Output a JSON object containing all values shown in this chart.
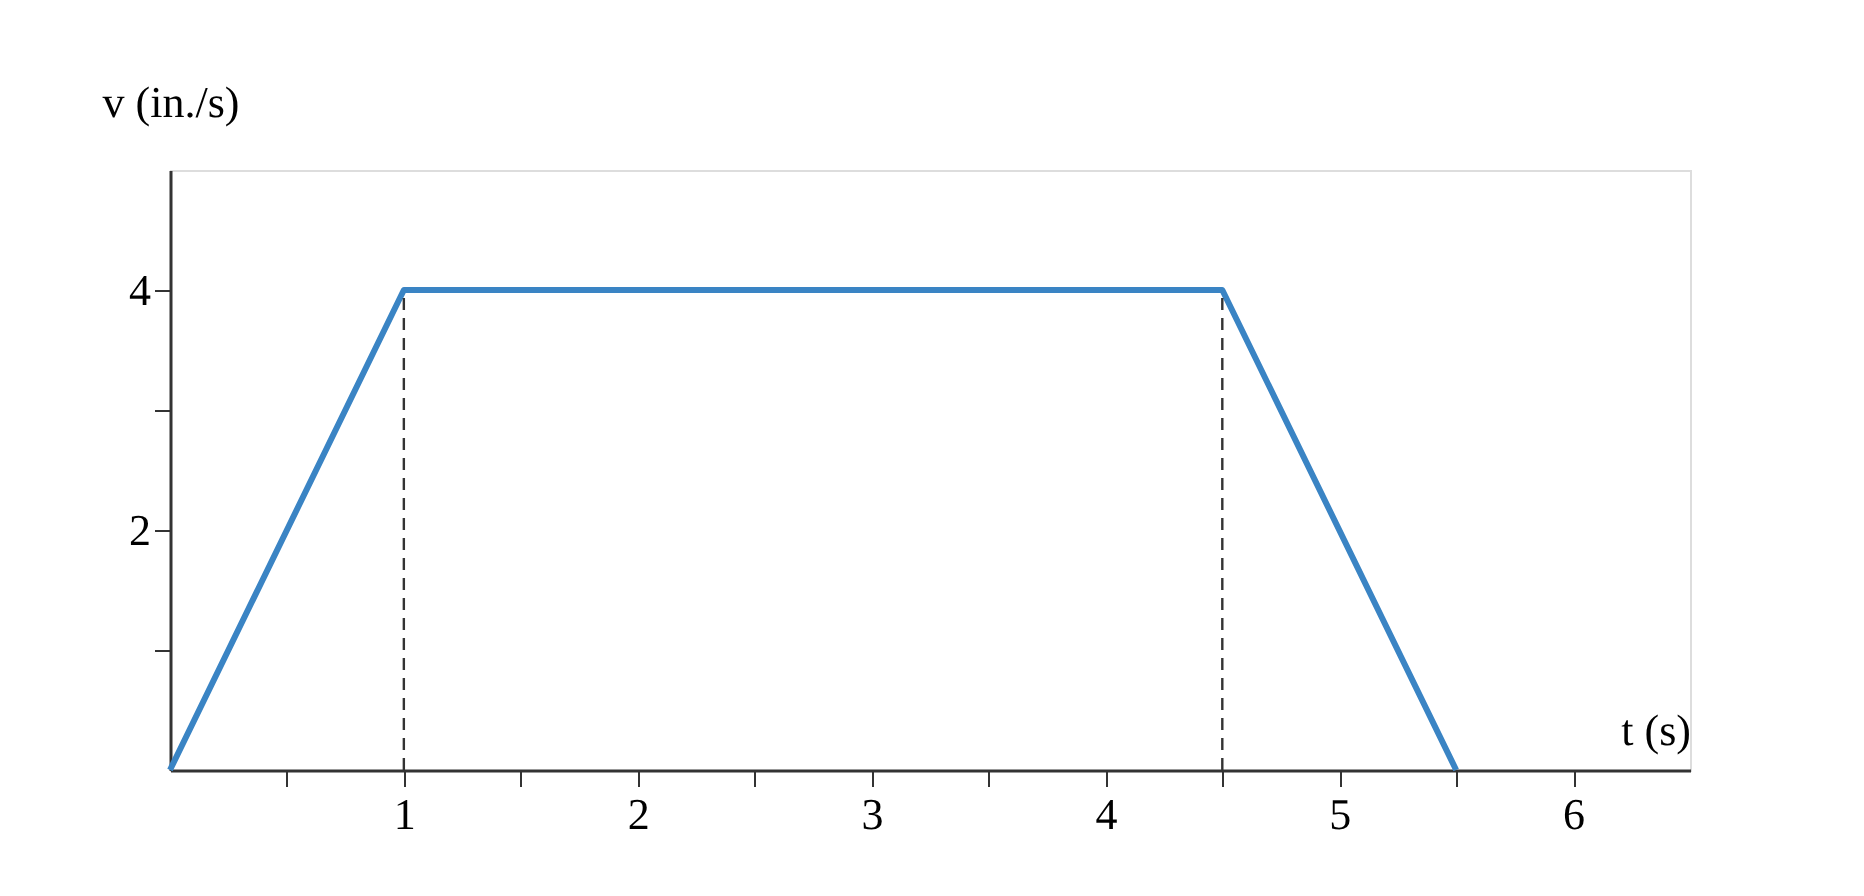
{
  "chart_data": {
    "type": "line",
    "xlabel": "t (s)",
    "ylabel": "v (in./s)",
    "series": [
      {
        "color": "#3a84c4",
        "x": [
          0,
          1,
          4.5,
          5.5
        ],
        "values": [
          0,
          4,
          4,
          0
        ]
      }
    ],
    "xlim": [
      0,
      6.5
    ],
    "ylim": [
      0,
      5
    ],
    "xticks": [
      {
        "value": 0.5,
        "label": null
      },
      1,
      {
        "value": 1.5,
        "label": null
      },
      2,
      {
        "value": 2.5,
        "label": null
      },
      3,
      {
        "value": 3.5,
        "label": null
      },
      4,
      {
        "value": 4.5,
        "label": null
      },
      5,
      {
        "value": 5.5,
        "label": null
      },
      6
    ],
    "yticks": [
      {
        "value": 1,
        "label": null
      },
      2,
      {
        "value": 3,
        "label": null
      },
      4
    ],
    "ref_lines": [
      {
        "axis": "x",
        "value": 1,
        "color": "#333333",
        "line_style": "dashed"
      },
      {
        "axis": "x",
        "value": 4.5,
        "color": "#333333",
        "line_style": "dashed"
      }
    ],
    "grid": false,
    "marker": "none",
    "line_style": "solid"
  }
}
